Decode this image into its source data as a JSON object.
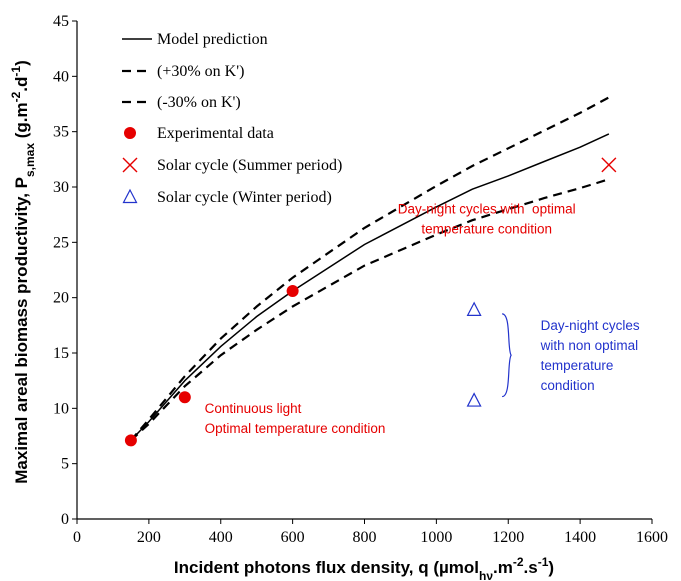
{
  "chart_data": {
    "type": "scatter",
    "title": "",
    "xlabel": {
      "parts": [
        {
          "text": "Incident photons flux density, q (µmol",
          "style": "normal"
        },
        {
          "text": "hν",
          "style": "sub"
        },
        {
          "text": ".m",
          "style": "normal"
        },
        {
          "text": "-2",
          "style": "sup"
        },
        {
          "text": ".s",
          "style": "normal"
        },
        {
          "text": "-1",
          "style": "sup"
        },
        {
          "text": ")",
          "style": "normal"
        }
      ]
    },
    "ylabel": {
      "parts": [
        {
          "text": "Maximal areal biomass productivity, P",
          "style": "normal"
        },
        {
          "text": "s,max",
          "style": "sub"
        },
        {
          "text": " (g.m",
          "style": "normal"
        },
        {
          "text": "-2",
          "style": "sup"
        },
        {
          "text": ".d",
          "style": "normal"
        },
        {
          "text": "-1",
          "style": "sup"
        },
        {
          "text": ")",
          "style": "normal"
        }
      ]
    },
    "xlim": [
      0,
      1600
    ],
    "ylim": [
      0,
      45
    ],
    "xticks": [
      0,
      200,
      400,
      600,
      800,
      1000,
      1200,
      1400,
      1600
    ],
    "yticks": [
      0,
      5,
      10,
      15,
      20,
      25,
      30,
      35,
      40,
      45
    ],
    "grid": false,
    "legend_position": "top-left",
    "colors": {
      "red": "#e60000",
      "blue": "#2233cc",
      "black": "#000000"
    },
    "series": [
      {
        "name": "Model prediction",
        "kind": "line",
        "dash": "solid",
        "x": [
          150,
          200,
          300,
          400,
          500,
          600,
          800,
          1000,
          1100,
          1200,
          1300,
          1400,
          1480
        ],
        "y": [
          7.1,
          8.8,
          12.5,
          15.6,
          18.3,
          20.6,
          24.8,
          28.2,
          29.8,
          31.0,
          32.3,
          33.6,
          34.8
        ]
      },
      {
        "name": "(+30% on K')",
        "kind": "line",
        "dash": "dashed",
        "x": [
          150,
          200,
          300,
          400,
          500,
          600,
          800,
          1000,
          1100,
          1200,
          1300,
          1400,
          1480
        ],
        "y": [
          7.1,
          9.0,
          12.9,
          16.3,
          19.2,
          21.8,
          26.3,
          30.1,
          31.9,
          33.5,
          35.1,
          36.7,
          38.1
        ]
      },
      {
        "name": "(-30% on K')",
        "kind": "line",
        "dash": "dashed",
        "x": [
          150,
          200,
          300,
          400,
          500,
          600,
          800,
          1000,
          1100,
          1200,
          1300,
          1400,
          1480
        ],
        "y": [
          7.1,
          8.6,
          12.0,
          14.8,
          17.1,
          19.2,
          22.9,
          25.7,
          27.0,
          28.0,
          29.0,
          29.9,
          30.7
        ]
      },
      {
        "name": "Experimental data",
        "kind": "marker",
        "marker": "circle",
        "color": "#e60000",
        "x": [
          150,
          300,
          600
        ],
        "y": [
          7.1,
          11.0,
          20.6
        ]
      },
      {
        "name": "Solar cycle (Summer period)",
        "kind": "marker",
        "marker": "x",
        "color": "#e60000",
        "x": [
          1480
        ],
        "y": [
          32.0
        ]
      },
      {
        "name": "Solar cycle (Winter period)",
        "kind": "marker",
        "marker": "triangle",
        "color": "#2233cc",
        "x": [
          1105,
          1105
        ],
        "y": [
          18.9,
          10.7
        ]
      }
    ],
    "annotations": [
      {
        "lines": [
          "Day-night cycles with  optimal",
          "temperature condition"
        ],
        "color": "#e60000",
        "x": 1140,
        "y": 27.6,
        "align": "middle"
      },
      {
        "lines": [
          "Continuous light",
          "Optimal temperature condition"
        ],
        "color": "#e60000",
        "x": 355,
        "y": 9.6,
        "align": "start"
      },
      {
        "lines": [
          "Day-night cycles",
          "with non optimal",
          "temperature",
          "condition"
        ],
        "color": "#2233cc",
        "x": 1290,
        "y": 17.1,
        "align": "start"
      }
    ]
  }
}
